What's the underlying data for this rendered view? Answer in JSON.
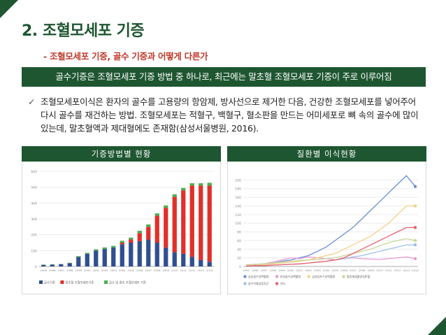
{
  "header": {
    "title": "2. 조혈모세포 기증",
    "subtitle": "- 조혈모세포 기증, 골수 기증과 어떻게 다른가",
    "banner": "골수기증은 조혈모세포 기증 방법 중 하나로, 최근에는 말초혈 조혈모세포 기증이 주로 이루어짐"
  },
  "body": {
    "check_symbol": "✓",
    "paragraph": "조혈모세포이식은 환자의 골수를 고용량의 항암제, 방사선으로 제거한 다음, 건강한 조혈모세포를 넣어주어 다시 골수를 재건하는 방법. 조혈모세포는 적혈구, 백혈구, 혈소판을 만드는 어미세포로 뼈 속의 골수에 많이 있는데, 말초혈액과 제대혈에도 존재함(삼성서울병원, 2016)."
  },
  "panels": {
    "left_title": "기증방법별 현황",
    "right_title": "질환별 이식현황"
  },
  "colors": {
    "brand_green": "#1e5631",
    "accent_red": "#c0392b"
  },
  "chart_data": [
    {
      "type": "bar",
      "stacked": true,
      "categories": [
        "1995",
        "1996",
        "1997",
        "1998",
        "1999",
        "2000",
        "2001",
        "2002",
        "2003",
        "2004",
        "2005",
        "2006",
        "2007",
        "2008",
        "2009",
        "2010",
        "2011",
        "2012",
        "2013",
        "2014"
      ],
      "series": [
        {
          "name": "골수기증",
          "color": "#2f4f8f",
          "values": [
            10,
            12,
            14,
            20,
            60,
            80,
            100,
            110,
            120,
            140,
            150,
            160,
            170,
            150,
            120,
            90,
            80,
            60,
            40,
            30
          ]
        },
        {
          "name": "말초혈 조혈모세포기증",
          "color": "#e0302a",
          "values": [
            0,
            0,
            0,
            0,
            0,
            0,
            0,
            0,
            0,
            10,
            20,
            50,
            80,
            170,
            250,
            350,
            400,
            450,
            470,
            480
          ]
        },
        {
          "name": "골수 및 말초 조혈모세포 기증",
          "color": "#4caf50",
          "values": [
            2,
            2,
            2,
            3,
            5,
            6,
            8,
            10,
            10,
            12,
            12,
            15,
            15,
            15,
            15,
            15,
            15,
            15,
            15,
            18
          ]
        }
      ],
      "ylim": [
        0,
        600
      ],
      "yticks": [
        0,
        100,
        200,
        300,
        400,
        500,
        600
      ],
      "legend_position": "bottom"
    },
    {
      "type": "line",
      "x": [
        "1995",
        "1996",
        "1997",
        "1998",
        "1999",
        "2000",
        "2001",
        "2002",
        "2003",
        "2004",
        "2005",
        "2006",
        "2007",
        "2008",
        "2009",
        "2010",
        "2011",
        "2012",
        "2013",
        "2014"
      ],
      "series": [
        {
          "name": "급성골수성백혈병",
          "color": "#6b8fd0",
          "values": [
            3,
            5,
            6,
            8,
            12,
            15,
            20,
            25,
            35,
            45,
            60,
            75,
            90,
            110,
            130,
            150,
            170,
            190,
            210,
            185
          ]
        },
        {
          "name": "만성골수성백혈병",
          "color": "#e89ad0",
          "values": [
            2,
            4,
            6,
            10,
            15,
            20,
            18,
            22,
            20,
            18,
            15,
            18,
            20,
            18,
            17,
            16,
            18,
            20,
            22,
            18
          ]
        },
        {
          "name": "급성림프구성백혈병",
          "color": "#f5d08a",
          "values": [
            2,
            3,
            4,
            6,
            8,
            10,
            12,
            15,
            20,
            25,
            30,
            40,
            50,
            60,
            70,
            85,
            100,
            120,
            140,
            140
          ]
        },
        {
          "name": "중증재생불량성빈혈",
          "color": "#c8d89a",
          "values": [
            4,
            5,
            6,
            8,
            10,
            12,
            14,
            15,
            16,
            18,
            20,
            25,
            30,
            35,
            40,
            48,
            55,
            60,
            64,
            60
          ]
        },
        {
          "name": "골수이형성증후군",
          "color": "#9cc0e8",
          "values": [
            1,
            2,
            2,
            3,
            4,
            5,
            6,
            8,
            10,
            12,
            15,
            18,
            22,
            25,
            30,
            35,
            40,
            45,
            50,
            50
          ]
        },
        {
          "name": "기타",
          "color": "#e86070",
          "values": [
            1,
            2,
            2,
            3,
            4,
            5,
            6,
            8,
            10,
            12,
            15,
            20,
            30,
            40,
            50,
            60,
            70,
            80,
            90,
            90
          ]
        }
      ],
      "ylim": [
        0,
        220
      ],
      "yticks": [
        0,
        20,
        40,
        60,
        80,
        100,
        120,
        140,
        160,
        180,
        200
      ],
      "legend_position": "bottom"
    }
  ]
}
